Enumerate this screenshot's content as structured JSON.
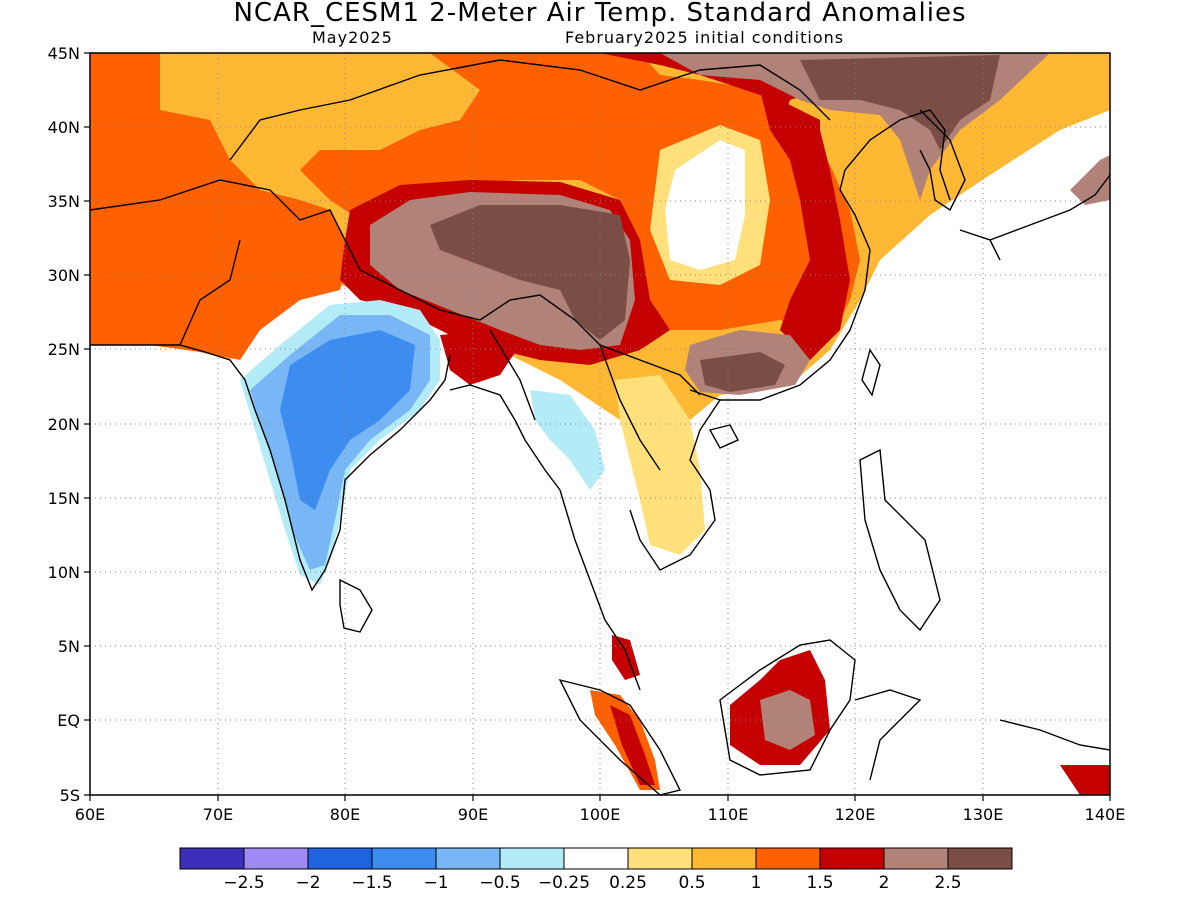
{
  "title": "NCAR_CESM1 2-Meter Air Temp. Standard Anomalies",
  "subtitle_left": "May2025",
  "subtitle_right": "February2025 initial conditions",
  "lat_labels": [
    "45N",
    "40N",
    "35N",
    "30N",
    "25N",
    "20N",
    "15N",
    "10N",
    "5N",
    "EQ",
    "5S"
  ],
  "lon_labels": [
    "60E",
    "70E",
    "80E",
    "90E",
    "100E",
    "110E",
    "120E",
    "130E",
    "140E"
  ],
  "colorbar": {
    "colors": [
      "#3b2eb8",
      "#9f8af5",
      "#1f63e0",
      "#3d8df0",
      "#78b6f5",
      "#b3ecf7",
      "#ffffff",
      "#ffe07a",
      "#ffb833",
      "#ff6000",
      "#c40000",
      "#b08278",
      "#7a4e44"
    ],
    "labels": [
      "-2.5",
      "-2",
      "-1.5",
      "-1",
      "-0.5",
      "-0.25",
      "0.25",
      "0.5",
      "1",
      "1.5",
      "2",
      "2.5"
    ]
  },
  "map_extent": {
    "lon_min": 60,
    "lon_max": 140,
    "lat_min": -5,
    "lat_max": 45
  }
}
